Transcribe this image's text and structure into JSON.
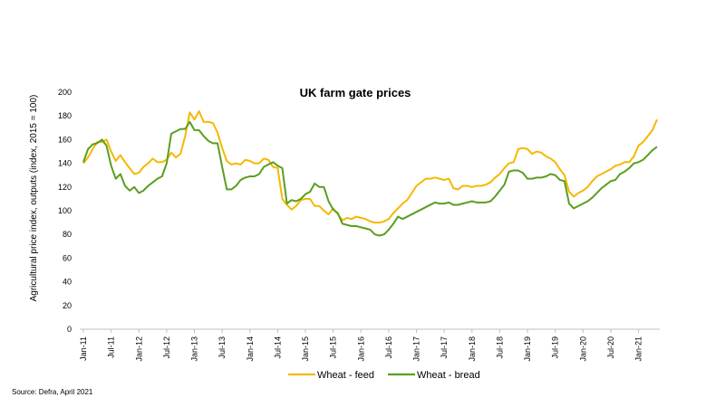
{
  "chart_data": {
    "type": "line",
    "title": "UK farm gate prices",
    "ylabel": "Agricultural price index, outputs (index, 2015 = 100)",
    "xlabel": "",
    "ylim": [
      0,
      200
    ],
    "yticks": [
      0,
      20,
      40,
      60,
      80,
      100,
      120,
      140,
      160,
      180,
      200
    ],
    "grid": false,
    "legend_position": "bottom",
    "start_month": "Jan-11",
    "x_tick_labels": [
      "Jan-11",
      "Jul-11",
      "Jan-12",
      "Jul-12",
      "Jan-13",
      "Jul-13",
      "Jan-14",
      "Jul-14",
      "Jan-15",
      "Jul-15",
      "Jan-16",
      "Jul-16",
      "Jan-17",
      "Jul-17",
      "Jan-18",
      "Jul-18",
      "Jan-19",
      "Jul-19",
      "Jan-20",
      "Jul-20",
      "Jan-21"
    ],
    "series": [
      {
        "name": "Wheat - feed",
        "color": "#F5B800",
        "values": [
          140,
          145,
          152,
          158,
          158,
          160,
          150,
          142,
          147,
          141,
          136,
          131,
          132,
          137,
          140,
          144,
          141,
          141,
          143,
          149,
          145,
          148,
          163,
          183,
          177,
          184,
          175,
          175,
          174,
          166,
          153,
          142,
          139,
          140,
          139,
          143,
          142,
          140,
          140,
          144,
          143,
          137,
          136,
          110,
          105,
          101,
          104,
          109,
          110,
          110,
          104,
          104,
          100,
          97,
          102,
          97,
          92,
          94,
          93,
          95,
          94,
          93,
          91,
          90,
          90,
          91,
          93,
          98,
          102,
          106,
          109,
          115,
          121,
          124,
          127,
          127,
          128,
          127,
          126,
          127,
          119,
          118,
          121,
          121,
          120,
          121,
          121,
          122,
          124,
          128,
          131,
          136,
          140,
          141,
          152,
          153,
          152,
          148,
          150,
          149,
          146,
          144,
          141,
          135,
          130,
          116,
          112,
          115,
          117,
          120,
          125,
          129,
          131,
          133,
          135,
          138,
          139,
          141,
          141,
          146,
          155,
          158,
          163,
          168,
          177
        ]
      },
      {
        "name": "Wheat - bread",
        "color": "#5A9E1F",
        "values": [
          141,
          152,
          156,
          157,
          160,
          155,
          138,
          127,
          131,
          121,
          117,
          120,
          115,
          117,
          121,
          124,
          127,
          129,
          140,
          165,
          167,
          169,
          169,
          175,
          168,
          168,
          163,
          159,
          157,
          157,
          137,
          118,
          118,
          121,
          126,
          128,
          129,
          129,
          131,
          137,
          139,
          141,
          138,
          136,
          106,
          109,
          108,
          110,
          114,
          116,
          123,
          120,
          120,
          108,
          101,
          98,
          89,
          88,
          87,
          87,
          86,
          85,
          84,
          80,
          79,
          80,
          84,
          89,
          95,
          93,
          95,
          97,
          99,
          101,
          103,
          105,
          107,
          106,
          106,
          107,
          105,
          105,
          106,
          107,
          108,
          107,
          107,
          107,
          108,
          112,
          117,
          122,
          133,
          134,
          134,
          132,
          127,
          127,
          128,
          128,
          129,
          131,
          130,
          126,
          125,
          106,
          102,
          104,
          106,
          108,
          111,
          115,
          119,
          122,
          125,
          126,
          131,
          133,
          136,
          140,
          141,
          143,
          147,
          151,
          154
        ]
      }
    ]
  },
  "source": "Source: Defra, April 2021"
}
